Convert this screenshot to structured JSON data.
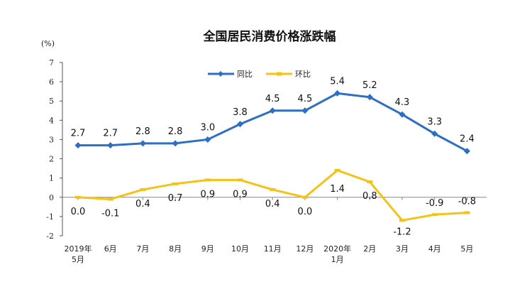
{
  "chart_data": {
    "type": "line",
    "title": "全国居民消费价格涨跌幅",
    "unit_label": "(%)",
    "ylim": [
      -2,
      7
    ],
    "yticks": [
      -2,
      -1,
      0,
      1,
      2,
      3,
      4,
      5,
      6,
      7
    ],
    "categories": [
      [
        "2019年",
        "5月"
      ],
      [
        "6月"
      ],
      [
        "7月"
      ],
      [
        "8月"
      ],
      [
        "9月"
      ],
      [
        "10月"
      ],
      [
        "11月"
      ],
      [
        "12月"
      ],
      [
        "2020年",
        "1月"
      ],
      [
        "2月"
      ],
      [
        "3月"
      ],
      [
        "4月"
      ],
      [
        "5月"
      ]
    ],
    "legend_position": "top-center",
    "grid": false,
    "series": [
      {
        "name": "同比",
        "color": "#2E6FC4",
        "marker": "diamond",
        "values": [
          2.7,
          2.7,
          2.8,
          2.8,
          3.0,
          3.8,
          4.5,
          4.5,
          5.4,
          5.2,
          4.3,
          3.3,
          2.4
        ],
        "labels": [
          "2.7",
          "2.7",
          "2.8",
          "2.8",
          "3.0",
          "3.8",
          "4.5",
          "4.5",
          "5.4",
          "5.2",
          "4.3",
          "3.3",
          "2.4"
        ]
      },
      {
        "name": "环比",
        "color": "#F5C216",
        "marker": "dash",
        "values": [
          0.0,
          -0.1,
          0.4,
          0.7,
          0.9,
          0.9,
          0.4,
          0.0,
          1.4,
          0.8,
          -1.2,
          -0.9,
          -0.8
        ],
        "labels": [
          "0.0",
          "-0.1",
          "0.4",
          "0.7",
          "0.9",
          "0.9",
          "0.4",
          "0.0",
          "1.4",
          "0.8",
          "-1.2",
          "-0.9",
          "-0.8"
        ]
      }
    ]
  }
}
